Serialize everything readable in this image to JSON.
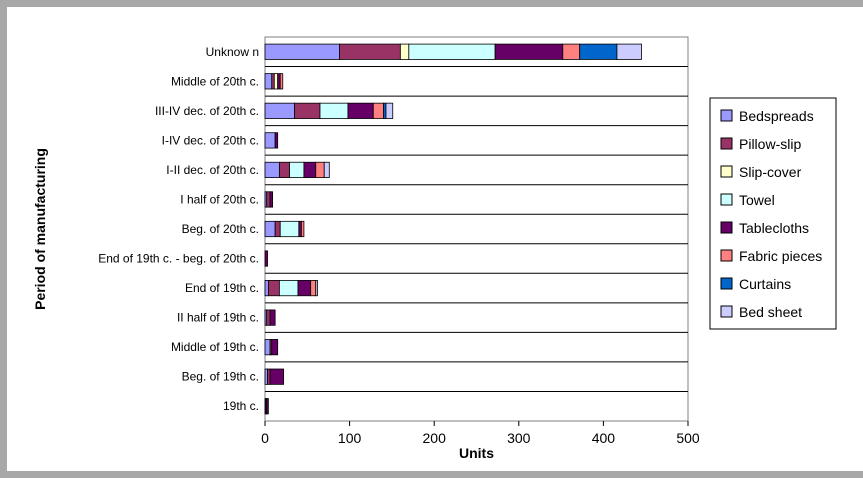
{
  "chart_data": {
    "type": "bar",
    "orientation": "horizontal",
    "stacked": true,
    "title": "",
    "xlabel": "Units",
    "ylabel": "Period of manufacturing",
    "xlim": [
      0,
      500
    ],
    "xticks": [
      0,
      100,
      200,
      300,
      400,
      500
    ],
    "grid": "horizontal",
    "legend_position": "right",
    "categories": [
      "Unknow n",
      "Middle of 20th c.",
      "III-IV dec. of 20th c.",
      "I-IV dec. of 20th c.",
      "I-II dec. of 20th c.",
      "I half of 20th c.",
      "Beg. of 20th c.",
      "End of 19th c. - beg. of 20th c.",
      "End of 19th c.",
      "II half of 19th c.",
      "Middle of 19th c.",
      "Beg. of 19th c.",
      "19th c."
    ],
    "series": [
      {
        "name": "Bedspreads",
        "color": "#9999ff",
        "values": [
          88,
          8,
          35,
          12,
          17,
          2,
          12,
          0,
          4,
          2,
          6,
          3,
          1
        ]
      },
      {
        "name": "Pillow-slip",
        "color": "#993366",
        "values": [
          72,
          3,
          30,
          0,
          12,
          4,
          6,
          0,
          13,
          4,
          2,
          3,
          1
        ]
      },
      {
        "name": "Slip-cover",
        "color": "#ffffcc",
        "values": [
          10,
          4,
          0,
          0,
          0,
          0,
          0,
          0,
          0,
          0,
          0,
          0,
          0
        ]
      },
      {
        "name": "Towel",
        "color": "#ccffff",
        "values": [
          102,
          0,
          33,
          0,
          17,
          0,
          22,
          0,
          22,
          0,
          0,
          0,
          0
        ]
      },
      {
        "name": "Tablecloths",
        "color": "#660066",
        "values": [
          80,
          3,
          30,
          3,
          14,
          3,
          3,
          3,
          15,
          6,
          7,
          16,
          2
        ]
      },
      {
        "name": "Fabric pieces",
        "color": "#ff8080",
        "values": [
          20,
          3,
          12,
          0,
          10,
          0,
          3,
          0,
          6,
          0,
          0,
          0,
          0
        ]
      },
      {
        "name": "Curtains",
        "color": "#0066cc",
        "values": [
          44,
          0,
          3,
          0,
          0,
          0,
          0,
          0,
          0,
          0,
          0,
          0,
          0
        ]
      },
      {
        "name": "Bed sheet",
        "color": "#ccccff",
        "values": [
          29,
          0,
          8,
          0,
          6,
          0,
          0,
          0,
          2,
          0,
          0,
          0,
          0
        ]
      }
    ]
  }
}
